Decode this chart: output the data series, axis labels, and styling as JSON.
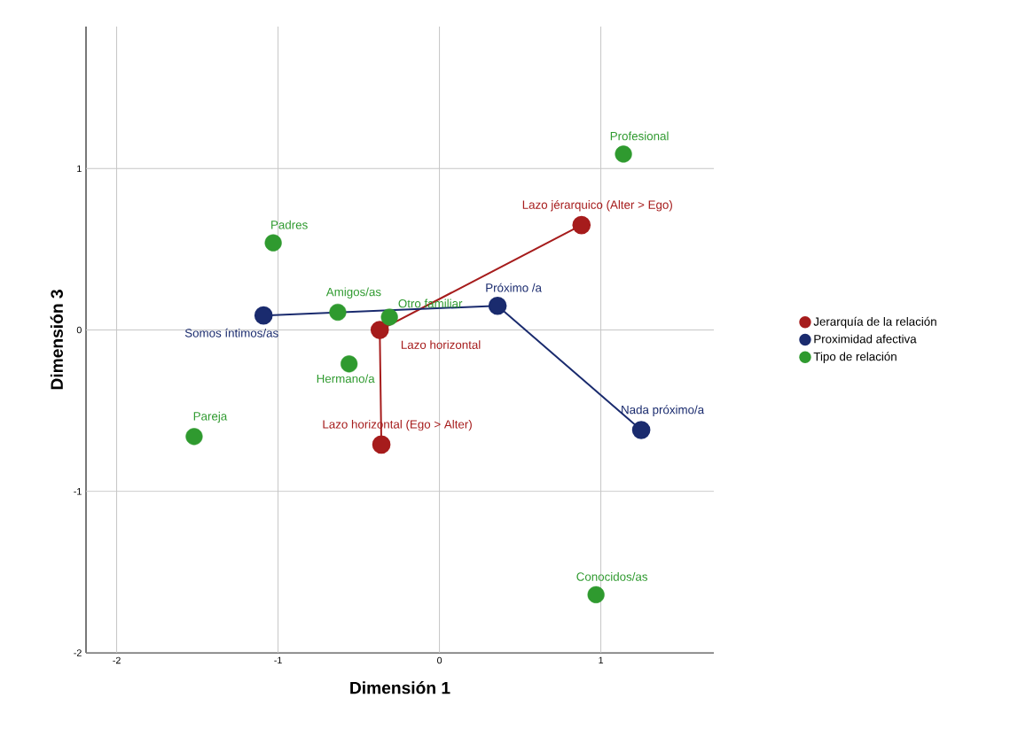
{
  "chart_data": {
    "type": "line",
    "xlabel": "Dimensión 1",
    "ylabel": "Dimensión 3",
    "xlim": [
      -2.19,
      1.7
    ],
    "ylim": [
      -2,
      1.88
    ],
    "xticks": [
      -2,
      -1,
      0,
      1
    ],
    "yticks": [
      -2,
      -1,
      0,
      1
    ],
    "grid": true,
    "legend": "right",
    "marker": "circle",
    "series": [
      {
        "name": "Jerarquía de la relación",
        "color": "#a61c1c",
        "x": [
          -0.36,
          -0.37,
          0.88
        ],
        "values": [
          -0.71,
          0.0,
          0.65
        ]
      },
      {
        "name": "Proximidad afectiva",
        "color": "#1a2b6e",
        "x": [
          -1.09,
          0.36,
          1.25
        ],
        "values": [
          0.09,
          0.15,
          -0.62
        ]
      },
      {
        "name": "Tipo de relación",
        "color": "#2f9a2f",
        "type": "scatter",
        "x": [
          1.14,
          -1.03,
          -0.63,
          -0.31,
          -0.56,
          -1.52,
          0.97
        ],
        "values": [
          1.09,
          0.54,
          0.11,
          0.08,
          -0.21,
          -0.66,
          -1.64
        ]
      }
    ],
    "annotations": [
      {
        "text": "Lazo jérarquico (Alter > Ego)",
        "x": 0.88,
        "y": 0.65
      },
      {
        "text": "Lazo horizontal",
        "x": -0.37,
        "y": 0.0
      },
      {
        "text": "Lazo horizontal (Ego > Alter)",
        "x": -0.36,
        "y": -0.71
      },
      {
        "text": "Somos íntimos/as",
        "x": -1.09,
        "y": 0.09
      },
      {
        "text": "Próximo /a",
        "x": 0.36,
        "y": 0.15
      },
      {
        "text": "Nada próximo/a",
        "x": 1.25,
        "y": -0.62
      },
      {
        "text": "Profesional",
        "x": 1.14,
        "y": 1.09
      },
      {
        "text": "Padres",
        "x": -1.03,
        "y": 0.54
      },
      {
        "text": "Amigos/as",
        "x": -0.63,
        "y": 0.11
      },
      {
        "text": "Otro familiar",
        "x": -0.31,
        "y": 0.08
      },
      {
        "text": "Hermano/a",
        "x": -0.56,
        "y": -0.21
      },
      {
        "text": "Pareja",
        "x": -1.52,
        "y": -0.66
      },
      {
        "text": "Conocidos/as",
        "x": 0.97,
        "y": -1.64
      }
    ]
  }
}
